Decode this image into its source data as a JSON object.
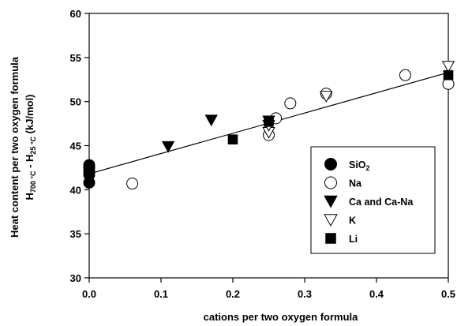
{
  "chart_data": {
    "type": "scatter",
    "title": "",
    "xlabel": "cations per two oxygen formula",
    "ylabel_line1": "Heat content per two oxygen formula",
    "ylabel_line2": {
      "h1": "H",
      "h1_sub": "700 °C",
      "sep": " - ",
      "h2": "H",
      "h2_sub": "25 °C",
      "unit": " (kJ/mol)"
    },
    "xlim": [
      0.0,
      0.5
    ],
    "ylim": [
      30,
      60
    ],
    "xticks": [
      "0.0",
      "0.1",
      "0.2",
      "0.3",
      "0.4",
      "0.5"
    ],
    "yticks": [
      "30",
      "35",
      "40",
      "45",
      "50",
      "55",
      "60"
    ],
    "grid": false,
    "legend_position": "lower-right",
    "series": [
      {
        "name": "SiO",
        "name_sub": "2",
        "marker": "circle-filled",
        "points": [
          [
            0.0,
            40.8
          ],
          [
            0.0,
            41.7
          ],
          [
            0.0,
            42.1
          ],
          [
            0.0,
            42.5
          ],
          [
            0.0,
            42.8
          ]
        ]
      },
      {
        "name": "Na",
        "marker": "circle-open",
        "points": [
          [
            0.06,
            40.7
          ],
          [
            0.25,
            46.2
          ],
          [
            0.26,
            48.1
          ],
          [
            0.28,
            49.8
          ],
          [
            0.33,
            50.9
          ],
          [
            0.44,
            53.0
          ],
          [
            0.5,
            52.0
          ]
        ]
      },
      {
        "name": "Ca and Ca-Na",
        "marker": "triangle-down-filled",
        "points": [
          [
            0.11,
            44.9
          ],
          [
            0.17,
            47.9
          ],
          [
            0.25,
            47.8
          ]
        ]
      },
      {
        "name": "K",
        "marker": "triangle-down-open",
        "points": [
          [
            0.25,
            46.5
          ],
          [
            0.25,
            47.3
          ],
          [
            0.33,
            50.6
          ],
          [
            0.5,
            54.0
          ]
        ]
      },
      {
        "name": "Li",
        "marker": "square-filled",
        "points": [
          [
            0.2,
            45.7
          ],
          [
            0.25,
            47.7
          ],
          [
            0.5,
            53.0
          ]
        ]
      }
    ],
    "trendline": {
      "x": [
        0.0,
        0.5
      ],
      "y": [
        41.8,
        53.3
      ]
    }
  }
}
